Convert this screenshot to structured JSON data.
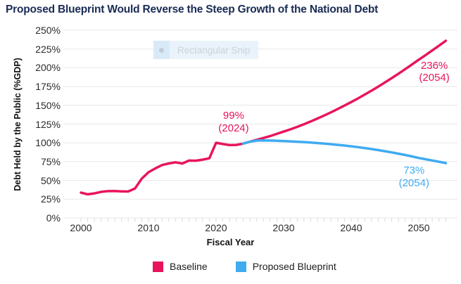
{
  "window": {
    "title": "Proposed Blueprint Would Reverse the Steep Growth of the National Debt"
  },
  "overlay": {
    "snip_tooltip_label": "Rectangular Snip"
  },
  "chart_data": {
    "type": "line",
    "title": "Proposed Blueprint Would Reverse the Steep Growth of the National Debt",
    "xlabel": "Fiscal Year",
    "ylabel": "Debt Held by the Public (%GDP)",
    "xlim": [
      2000,
      2055
    ],
    "ylim": [
      0,
      250
    ],
    "y_tick_step": 25,
    "y_tick_suffix": "%",
    "x_ticks": [
      2000,
      2010,
      2020,
      2030,
      2040,
      2050
    ],
    "minor_x_tick_start": 2000,
    "minor_x_tick_end": 2054,
    "grid": "horizontal",
    "legend_position": "bottom",
    "colors": {
      "baseline": "#e8155c",
      "blueprint": "#3fabf0",
      "title_text": "#1a2b55",
      "axis_text": "#2b2b2b",
      "gridline": "#e7e7e9",
      "tick": "#d9d9d9"
    },
    "series": [
      {
        "name": "Baseline",
        "color_key": "baseline",
        "x_start": 2000,
        "x_step": 1,
        "values": [
          33.7,
          31.5,
          32.7,
          34.7,
          35.7,
          35.8,
          35.4,
          35.2,
          39.2,
          52.3,
          60.9,
          65.9,
          70.4,
          72.6,
          74.1,
          72.5,
          76.4,
          76.2,
          77.6,
          79.4,
          100.1,
          98.4,
          97.0,
          97.3,
          99,
          101.5,
          104,
          106.5,
          109,
          112,
          115,
          118,
          121.3,
          124.8,
          128.5,
          132.4,
          136.4,
          140.6,
          145,
          149.6,
          154.3,
          159.2,
          164.3,
          169.5,
          174.9,
          180.5,
          186.2,
          192.1,
          198.2,
          204.4,
          210.8,
          216.9,
          223.1,
          229.5,
          236
        ]
      },
      {
        "name": "Proposed Blueprint",
        "color_key": "blueprint",
        "x_start": 2024,
        "x_step": 1,
        "values": [
          99,
          101.5,
          103,
          103.2,
          103.1,
          102.8,
          102.4,
          102.0,
          101.5,
          101.0,
          100.4,
          99.7,
          99.0,
          98.2,
          97.3,
          96.4,
          95.4,
          94.3,
          93.1,
          91.8,
          90.4,
          88.9,
          87.3,
          85.6,
          83.8,
          81.9,
          79.9,
          78.2,
          76.5,
          74.8,
          73
        ]
      }
    ],
    "annotations": [
      {
        "lines": [
          "99%",
          "(2024)"
        ],
        "series": "Baseline",
        "anchor_year": 2022.6,
        "anchor_value": 144
      },
      {
        "lines": [
          "236%",
          "(2054)"
        ],
        "series": "Baseline",
        "anchor_year": 2052.3,
        "anchor_value": 211
      },
      {
        "lines": [
          "73%",
          "(2054)"
        ],
        "series": "Proposed Blueprint",
        "anchor_year": 2049.3,
        "anchor_value": 71
      }
    ]
  }
}
